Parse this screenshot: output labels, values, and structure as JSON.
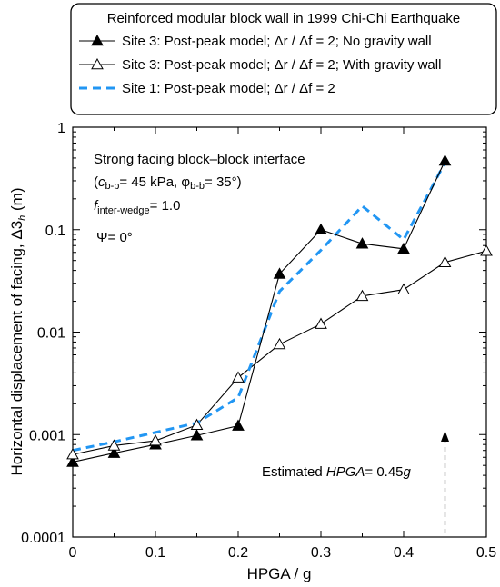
{
  "chart_data": {
    "type": "line",
    "title": "",
    "xlabel": "HPGA / g",
    "ylabel": "Horizontal displacement of facing, Δ3h (m)",
    "xlim": [
      0,
      0.5
    ],
    "ylim": [
      0.0001,
      1
    ],
    "yscale": "log",
    "grid": false,
    "x_ticks": [
      "0",
      "0.1",
      "0.2",
      "0.3",
      "0.4",
      "0.5"
    ],
    "y_ticks": [
      "0.0001",
      "0.001",
      "0.01",
      "0.1",
      "1"
    ],
    "legend": {
      "title": "Reinforced modular block wall in 1999 Chi-Chi Earthquake",
      "placement": "top"
    },
    "series": [
      {
        "name": "Site 3: Post-peak model; Δr / Δf = 2; No gravity wall",
        "color": "#000000",
        "marker": "filled-triangle",
        "line": "solid",
        "x": [
          0,
          0.05,
          0.1,
          0.15,
          0.2,
          0.25,
          0.3,
          0.35,
          0.4,
          0.45
        ],
        "y": [
          0.00054,
          0.00066,
          0.0008,
          0.00098,
          0.00122,
          0.037,
          0.1,
          0.073,
          0.065,
          0.47
        ]
      },
      {
        "name": "Site 3: Post-peak model; Δr / Δf = 2; With gravity wall",
        "color": "#000000",
        "marker": "open-triangle",
        "line": "solid",
        "x": [
          0,
          0.05,
          0.1,
          0.15,
          0.2,
          0.25,
          0.3,
          0.35,
          0.4,
          0.45,
          0.5
        ],
        "y": [
          0.00064,
          0.00078,
          0.00087,
          0.00124,
          0.0036,
          0.0076,
          0.012,
          0.0225,
          0.026,
          0.048,
          0.062
        ]
      },
      {
        "name": "Site 1: Post-peak model; Δr / Δf = 2",
        "color": "#2196f3",
        "marker": "none",
        "line": "dashed",
        "x": [
          0,
          0.05,
          0.1,
          0.15,
          0.2,
          0.25,
          0.3,
          0.35,
          0.4,
          0.45
        ],
        "y": [
          0.0007,
          0.00085,
          0.00105,
          0.0013,
          0.0023,
          0.025,
          0.063,
          0.17,
          0.08,
          0.45
        ]
      }
    ],
    "annotations": {
      "interface": "Strong facing block–block interface",
      "params_open": "(",
      "c_symbol": "c",
      "c_sub": "b-b",
      "c_value": "= 45 kPa, ",
      "phi_symbol": "φ",
      "phi_sub": "b-b",
      "phi_value": "= 35°)",
      "f_symbol": "f",
      "f_sub": "inter-wedge",
      "f_value": "= 1.0",
      "psi": "Ψ= 0°",
      "hpga_prefix": "Estimated ",
      "hpga_symbol": "HPGA",
      "hpga_value": "= 0.45",
      "hpga_unit": "g",
      "hpga_x": 0.45
    }
  }
}
